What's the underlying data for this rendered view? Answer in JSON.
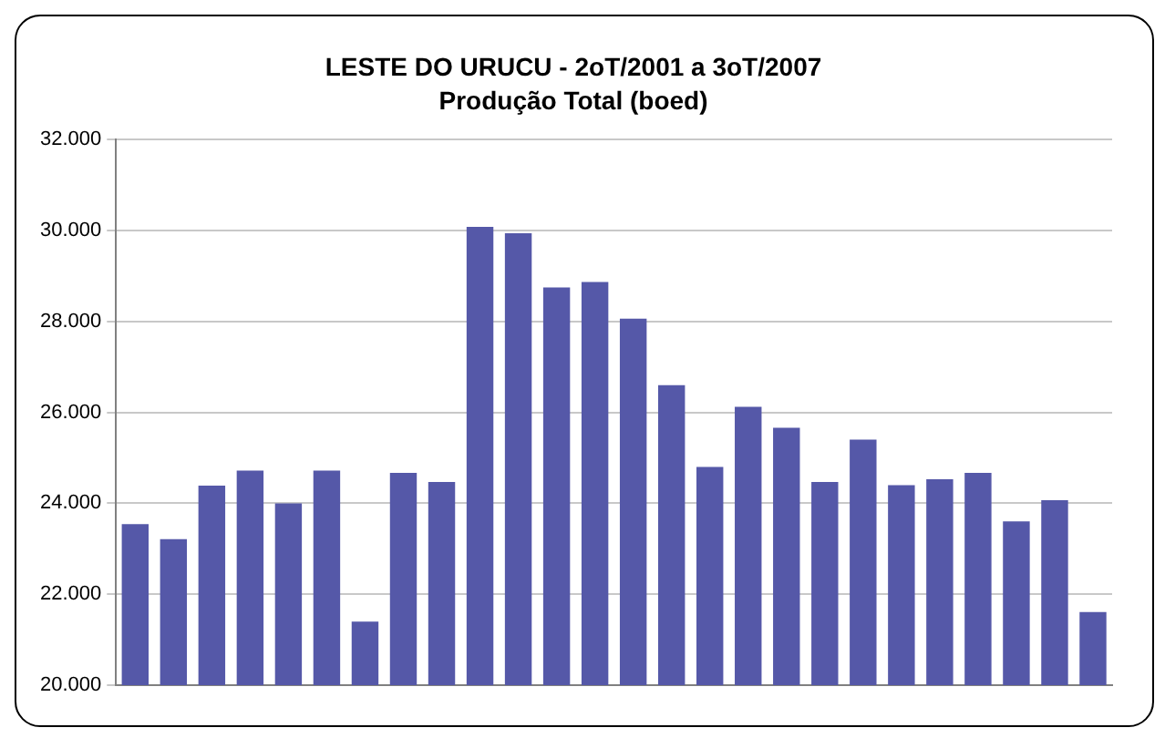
{
  "chart_data": {
    "type": "bar",
    "title": "LESTE DO URUCU - 2oT/2001 a 3oT/2007",
    "subtitle": "Produção Total (boed)",
    "categories": [
      null,
      null,
      null,
      null,
      null,
      null,
      null,
      null,
      null,
      null,
      null,
      null,
      null,
      null,
      null,
      null,
      null,
      null,
      null,
      null,
      null,
      null,
      null,
      null,
      null,
      null
    ],
    "values": [
      23540,
      23210,
      24390,
      24720,
      24000,
      24720,
      21400,
      24670,
      24470,
      30080,
      29940,
      28750,
      28870,
      28060,
      26600,
      24800,
      26120,
      25660,
      24470,
      25400,
      24400,
      24530,
      24670,
      23600,
      24070,
      21610
    ],
    "color": "#5558a8",
    "ylim": [
      20000,
      32000
    ],
    "yticks": [
      {
        "value": 20000,
        "label": "20.000"
      },
      {
        "value": 22000,
        "label": "22.000"
      },
      {
        "value": 24000,
        "label": "24.000"
      },
      {
        "value": 26000,
        "label": "26.000"
      },
      {
        "value": 28000,
        "label": "28.000"
      },
      {
        "value": 30000,
        "label": "30.000"
      },
      {
        "value": 32000,
        "label": "32.000"
      }
    ],
    "grid": "y",
    "legend": false,
    "tick_labels": "y"
  }
}
